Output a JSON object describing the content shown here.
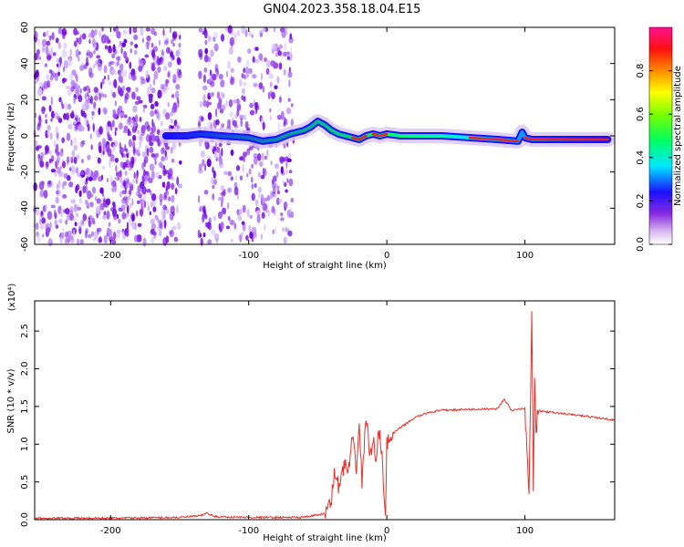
{
  "title": "GN04.2023.358.18.04.E15",
  "chart_data": [
    {
      "type": "heatmap",
      "xlabel": "Height of straight line (km)",
      "ylabel": "Frequency (Hz)",
      "xlim": [
        -255,
        165
      ],
      "ylim": [
        -60,
        60
      ],
      "xticks": [
        -200,
        -100,
        0,
        100
      ],
      "yticks": [
        -60,
        -40,
        -20,
        0,
        20,
        40,
        60
      ],
      "colorbar": {
        "label": "Normalized spectral amplitude",
        "range": [
          0,
          1
        ],
        "ticks": [
          "0.0",
          "0.2",
          "0.4",
          "0.6",
          "0.8"
        ]
      },
      "ridge": {
        "x": [
          -160,
          -145,
          -135,
          -120,
          -100,
          -90,
          -80,
          -70,
          -60,
          -55,
          -50,
          -45,
          -40,
          -35,
          -30,
          -25,
          -20,
          -15,
          -10,
          -5,
          0,
          10,
          20,
          40,
          60,
          80,
          95,
          98,
          100,
          105,
          120,
          140,
          160
        ],
        "y": [
          0,
          0,
          1,
          0,
          -1,
          -3,
          -2,
          1,
          3,
          5,
          8,
          6,
          3,
          1,
          0,
          -1,
          -2,
          0,
          1,
          0,
          1,
          0,
          0,
          0,
          -1,
          -2,
          -3,
          2,
          -1,
          -2,
          -2,
          -2,
          -2
        ]
      }
    },
    {
      "type": "line",
      "xlabel": "Height of straight line (km)",
      "ylabel": "SNR (10 * v/v)",
      "scale_label": "(x10⁴)",
      "xlim": [
        -255,
        165
      ],
      "ylim": [
        0,
        2.9
      ],
      "xticks": [
        -200,
        -100,
        0,
        100
      ],
      "yticks": [
        "0.0",
        "0.5",
        "1.0",
        "1.5",
        "2.0",
        "2.5"
      ],
      "series": [
        {
          "color": "#e8302a",
          "x": [
            -255,
            -200,
            -150,
            -135,
            -130,
            -125,
            -100,
            -60,
            -45,
            -40,
            -38,
            -35,
            -30,
            -28,
            -25,
            -22,
            -20,
            -18,
            -15,
            -12,
            -10,
            -8,
            -5,
            -3,
            -1,
            0,
            2,
            5,
            10,
            20,
            30,
            40,
            60,
            80,
            85,
            90,
            100,
            103,
            105,
            106,
            107,
            108,
            110,
            120,
            140,
            165
          ],
          "y": [
            0.02,
            0.02,
            0.03,
            0.05,
            0.09,
            0.04,
            0.03,
            0.03,
            0.08,
            0.3,
            0.6,
            0.45,
            0.75,
            0.6,
            1.05,
            0.7,
            1.25,
            0.5,
            1.4,
            0.8,
            1.05,
            0.85,
            1.2,
            0.7,
            0.03,
            1.05,
            1.0,
            1.15,
            1.22,
            1.35,
            1.42,
            1.45,
            1.46,
            1.47,
            1.6,
            1.45,
            1.48,
            0.4,
            2.85,
            0.3,
            1.9,
            1.2,
            1.44,
            1.42,
            1.38,
            1.32
          ]
        }
      ]
    }
  ]
}
